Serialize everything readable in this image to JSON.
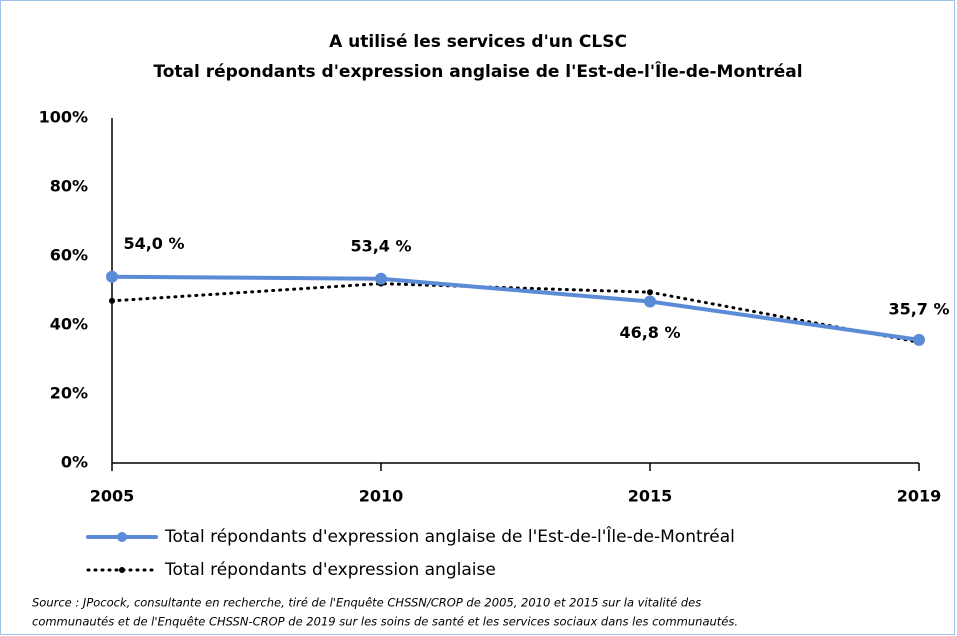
{
  "chart_data": {
    "type": "line",
    "title": "A utilisé les services d'un CLSC",
    "subtitle": "Total répondants d'expression anglaise de l'Est-de-l'Île-de-Montréal",
    "categories": [
      "2005",
      "2010",
      "2015",
      "2019"
    ],
    "series": [
      {
        "name": "Total répondants d'expression anglaise de l'Est-de-l'Île-de-Montréal",
        "color": "#5b8ad6",
        "style": "solid",
        "values": [
          54.0,
          53.4,
          46.8,
          35.7
        ],
        "value_labels": [
          "54,0 %",
          "53,4 %",
          "46,8 %",
          "35,7 %"
        ]
      },
      {
        "name": "Total répondants d'expression anglaise",
        "color": "#000000",
        "style": "dotted",
        "values": [
          47,
          52,
          49.5,
          35
        ]
      }
    ],
    "ylim": [
      0,
      100
    ],
    "yticks": [
      {
        "value": 0,
        "label": "0%"
      },
      {
        "value": 20,
        "label": "20%"
      },
      {
        "value": 40,
        "label": "40%"
      },
      {
        "value": 60,
        "label": "60%"
      },
      {
        "value": 80,
        "label": "80%"
      },
      {
        "value": 100,
        "label": "100%"
      }
    ],
    "grid": false,
    "source": [
      "Source : JPocock, consultante en recherche, tiré de l'Enquête CHSSN/CROP de 2005, 2010 et 2015 sur la vitalité des",
      "communautés et de l'Enquête CHSSN-CROP de 2019 sur les soins de santé et les services sociaux dans les communautés."
    ]
  }
}
